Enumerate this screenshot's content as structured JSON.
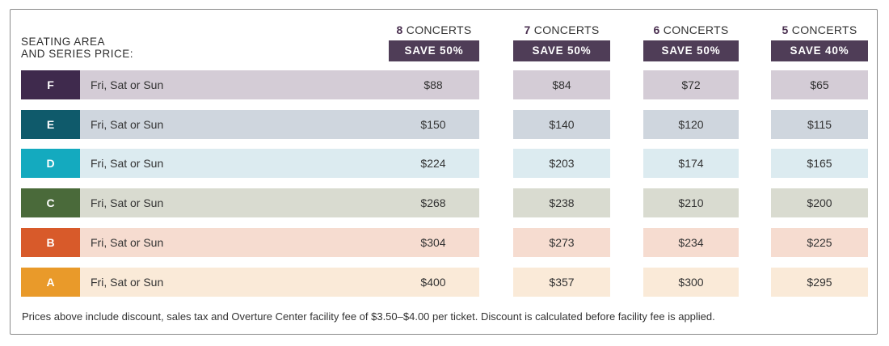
{
  "header": {
    "heading_line1": "SEATING AREA",
    "heading_line2": "AND SERIES PRICE:"
  },
  "columns": [
    {
      "num": "8",
      "label": "CONCERTS",
      "save": "SAVE 50%"
    },
    {
      "num": "7",
      "label": "CONCERTS",
      "save": "SAVE 50%"
    },
    {
      "num": "6",
      "label": "CONCERTS",
      "save": "SAVE 50%"
    },
    {
      "num": "5",
      "label": "CONCERTS",
      "save": "SAVE 40%"
    }
  ],
  "rows": [
    {
      "area": "F",
      "days": "Fri, Sat or Sun",
      "swatch_color": "#3f2a4d",
      "band_color": "#d4ccd6",
      "prices": [
        "$88",
        "$84",
        "$72",
        "$65"
      ]
    },
    {
      "area": "E",
      "days": "Fri, Sat or Sun",
      "swatch_color": "#0f5a6b",
      "band_color": "#cfd6de",
      "prices": [
        "$150",
        "$140",
        "$120",
        "$115"
      ]
    },
    {
      "area": "D",
      "days": "Fri, Sat or Sun",
      "swatch_color": "#14aabf",
      "band_color": "#dcebf0",
      "prices": [
        "$224",
        "$203",
        "$174",
        "$165"
      ]
    },
    {
      "area": "C",
      "days": "Fri, Sat or Sun",
      "swatch_color": "#4a6a3a",
      "band_color": "#d9dbd0",
      "prices": [
        "$268",
        "$238",
        "$210",
        "$200"
      ]
    },
    {
      "area": "B",
      "days": "Fri, Sat or Sun",
      "swatch_color": "#d85a2a",
      "band_color": "#f6dcd0",
      "prices": [
        "$304",
        "$273",
        "$234",
        "$225"
      ]
    },
    {
      "area": "A",
      "days": "Fri, Sat or Sun",
      "swatch_color": "#e99a2a",
      "band_color": "#faead8",
      "prices": [
        "$400",
        "$357",
        "$300",
        "$295"
      ]
    }
  ],
  "footnote": "Prices above include discount, sales tax and Overture Center facility fee of $3.50–$4.00 per ticket. Discount is calculated before facility fee is applied."
}
